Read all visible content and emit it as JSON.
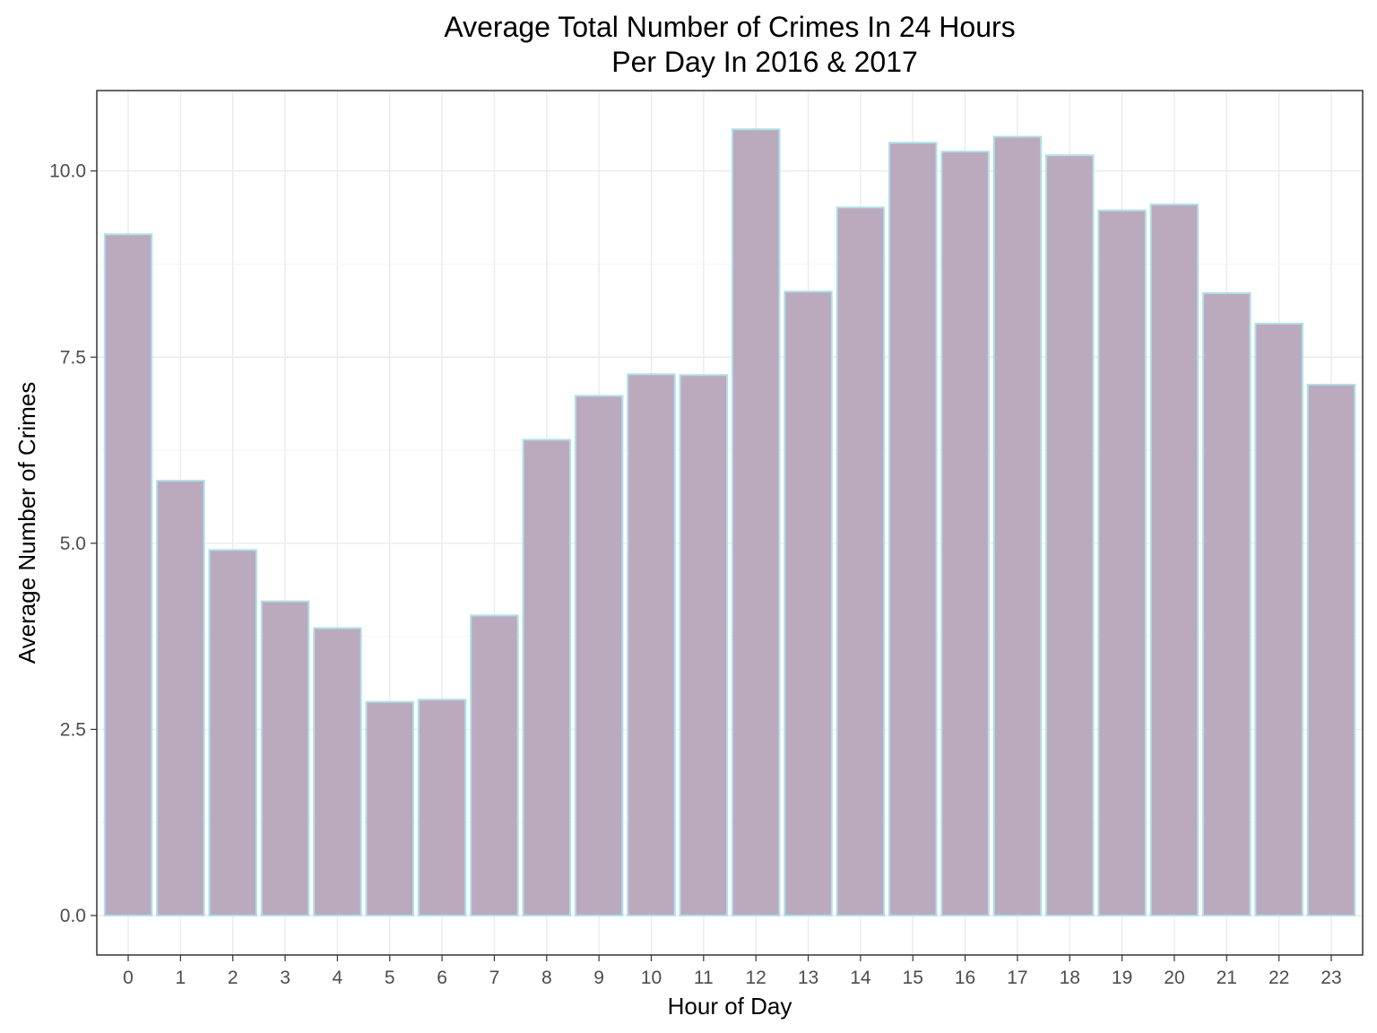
{
  "chart_data": {
    "type": "bar",
    "title": [
      "Average Total Number of Crimes In 24 Hours",
      "Per Day In 2016 & 2017"
    ],
    "xlabel": "Hour of Day",
    "ylabel": "Average Number of Crimes",
    "categories": [
      "0",
      "1",
      "2",
      "3",
      "4",
      "5",
      "6",
      "7",
      "8",
      "9",
      "10",
      "11",
      "12",
      "13",
      "14",
      "15",
      "16",
      "17",
      "18",
      "19",
      "20",
      "21",
      "22",
      "23"
    ],
    "values": [
      9.15,
      5.84,
      4.91,
      4.22,
      3.86,
      2.87,
      2.9,
      4.03,
      6.39,
      6.98,
      7.27,
      7.26,
      10.56,
      8.38,
      9.51,
      10.38,
      10.26,
      10.46,
      10.21,
      9.47,
      9.55,
      8.36,
      7.95,
      7.13
    ],
    "ylim": [
      -0.53,
      11.08
    ],
    "yticks": [
      0.0,
      2.5,
      5.0,
      7.5,
      10.0
    ],
    "ytick_labels": [
      "0.0",
      "2.5",
      "5.0",
      "7.5",
      "10.0"
    ],
    "grid": true,
    "colors": {
      "bar_fill": "#bbaabe",
      "bar_stroke": "#b0e0e6",
      "panel_border": "#333333"
    }
  }
}
